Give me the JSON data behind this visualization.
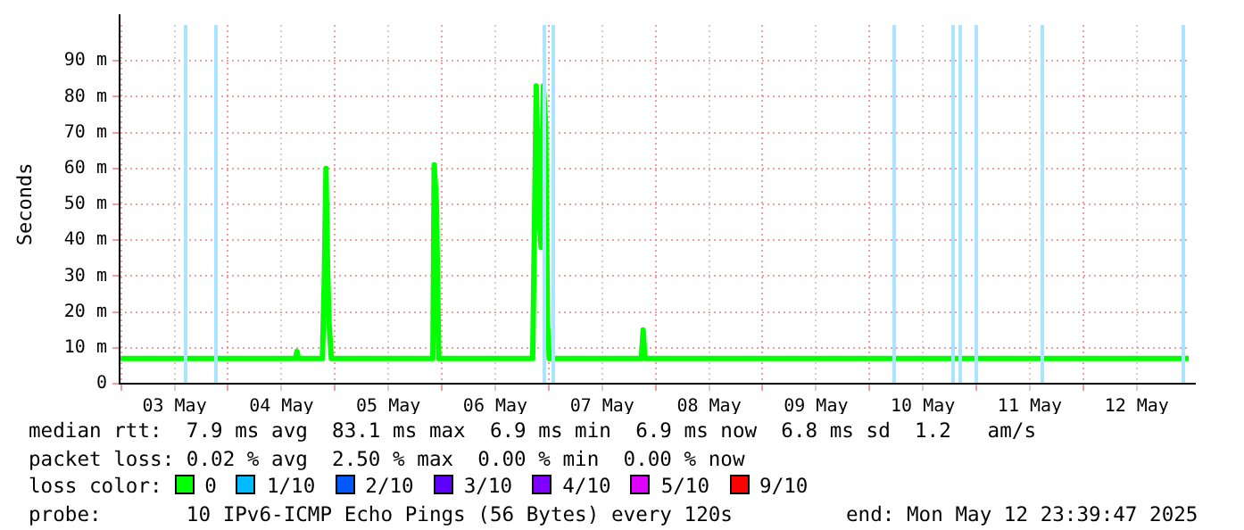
{
  "chart_data": {
    "type": "line",
    "ylabel": "Seconds",
    "xlim": [
      "2025-05-02T23:40",
      "2025-05-12T23:40"
    ],
    "xticks": [
      {
        "value": "2025-05-03T00:00",
        "label": null
      },
      {
        "value": "2025-05-03T12:00",
        "label": "03 May"
      },
      {
        "value": "2025-05-04T00:00",
        "label": null
      },
      {
        "value": "2025-05-04T12:00",
        "label": "04 May"
      },
      {
        "value": "2025-05-05T00:00",
        "label": null
      },
      {
        "value": "2025-05-05T12:00",
        "label": "05 May"
      },
      {
        "value": "2025-05-06T00:00",
        "label": null
      },
      {
        "value": "2025-05-06T12:00",
        "label": "06 May"
      },
      {
        "value": "2025-05-07T00:00",
        "label": null
      },
      {
        "value": "2025-05-07T12:00",
        "label": "07 May"
      },
      {
        "value": "2025-05-08T00:00",
        "label": null
      },
      {
        "value": "2025-05-08T12:00",
        "label": "08 May"
      },
      {
        "value": "2025-05-09T00:00",
        "label": null
      },
      {
        "value": "2025-05-09T12:00",
        "label": "09 May"
      },
      {
        "value": "2025-05-10T00:00",
        "label": null
      },
      {
        "value": "2025-05-10T12:00",
        "label": "10 May"
      },
      {
        "value": "2025-05-11T00:00",
        "label": null
      },
      {
        "value": "2025-05-11T12:00",
        "label": "11 May"
      },
      {
        "value": "2025-05-12T00:00",
        "label": null
      },
      {
        "value": "2025-05-12T12:00",
        "label": "12 May"
      }
    ],
    "ylim": [
      0,
      100
    ],
    "yticks": [
      {
        "value": 0,
        "label": "0"
      },
      {
        "value": 10,
        "label": "10 m"
      },
      {
        "value": 20,
        "label": "20 m"
      },
      {
        "value": 30,
        "label": "30 m"
      },
      {
        "value": 40,
        "label": "40 m"
      },
      {
        "value": 50,
        "label": "50 m"
      },
      {
        "value": 60,
        "label": "60 m"
      },
      {
        "value": 70,
        "label": "70 m"
      },
      {
        "value": 80,
        "label": "80 m"
      },
      {
        "value": 90,
        "label": "90 m"
      }
    ],
    "grid": true,
    "marker": "none",
    "line_style": "solid",
    "series": [
      {
        "color": "#00ff00",
        "x": [
          "2025-05-02T23:40",
          "2025-05-04T15:10",
          "2025-05-04T15:29",
          "2025-05-04T15:50",
          "2025-05-04T21:12",
          "2025-05-04T21:36",
          "2025-05-04T22:00",
          "2025-05-04T22:24",
          "2025-05-04T22:41",
          "2025-05-04T23:12",
          "2025-05-05T22:00",
          "2025-05-05T22:17",
          "2025-05-05T22:48",
          "2025-05-05T23:19",
          "2025-05-06T20:24",
          "2025-05-06T20:48",
          "2025-05-06T21:12",
          "2025-05-06T21:53",
          "2025-05-06T22:17",
          "2025-05-06T22:48",
          "2025-05-06T23:19",
          "2025-05-06T23:43",
          "2025-05-07T00:07",
          "2025-05-07T20:48",
          "2025-05-07T21:12",
          "2025-05-07T21:36",
          "2025-05-12T23:40"
        ],
        "values": [
          7,
          7,
          9,
          7,
          7,
          28,
          60,
          30,
          17,
          7,
          7,
          61,
          50,
          7,
          7,
          44,
          83,
          46,
          38,
          83,
          72,
          17,
          7,
          7,
          15,
          7,
          7
        ]
      }
    ],
    "ref_lines": [
      {
        "axis": "x",
        "value": "2025-05-03T14:31",
        "color": "#aae4ff"
      },
      {
        "axis": "x",
        "value": "2025-05-03T21:12",
        "color": "#aae4ff"
      },
      {
        "axis": "x",
        "value": "2025-05-06T23:12",
        "color": "#aae4ff"
      },
      {
        "axis": "x",
        "value": "2025-05-07T00:55",
        "color": "#aae4ff"
      },
      {
        "axis": "x",
        "value": "2025-05-10T05:43",
        "color": "#aae4ff"
      },
      {
        "axis": "x",
        "value": "2025-05-10T18:55",
        "color": "#aae4ff"
      },
      {
        "axis": "x",
        "value": "2025-05-10T20:31",
        "color": "#aae4ff"
      },
      {
        "axis": "x",
        "value": "2025-05-10T23:53",
        "color": "#aae4ff"
      },
      {
        "axis": "x",
        "value": "2025-05-11T14:55",
        "color": "#aae4ff"
      },
      {
        "axis": "x",
        "value": "2025-05-12T22:31",
        "color": "#aae4ff"
      }
    ],
    "annotations": [
      "median rtt:  7.9 ms avg  83.1 ms max  6.9 ms min  6.9 ms now  6.8 ms sd  1.2   am/s",
      "packet loss: 0.02 % avg  2.50 % max  0.00 % min  0.00 % now",
      "loss color:",
      "0",
      "1/10",
      "2/10",
      "3/10",
      "4/10",
      "5/10",
      "9/10",
      "probe:       10 IPv6-ICMP Echo Pings (56 Bytes) every 120s",
      "end: Mon May 12 23:39:47 2025"
    ]
  }
}
